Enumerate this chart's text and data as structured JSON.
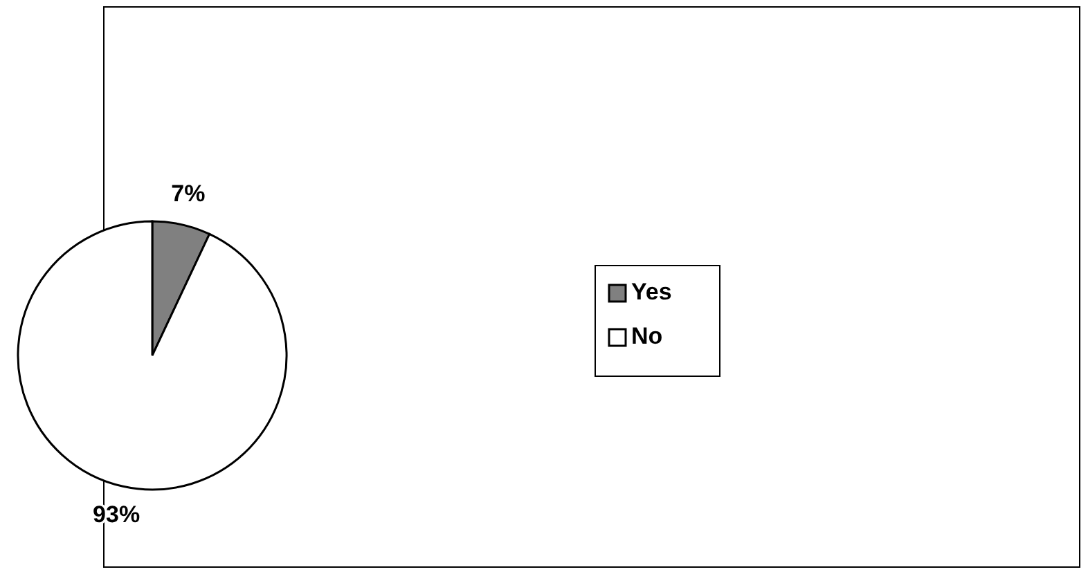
{
  "chart_data": {
    "type": "pie",
    "categories": [
      "Yes",
      "No"
    ],
    "values": [
      7,
      93
    ],
    "colors": [
      "#808080",
      "#ffffff"
    ],
    "value_labels": [
      "7%",
      "93%"
    ],
    "legend": "right"
  }
}
